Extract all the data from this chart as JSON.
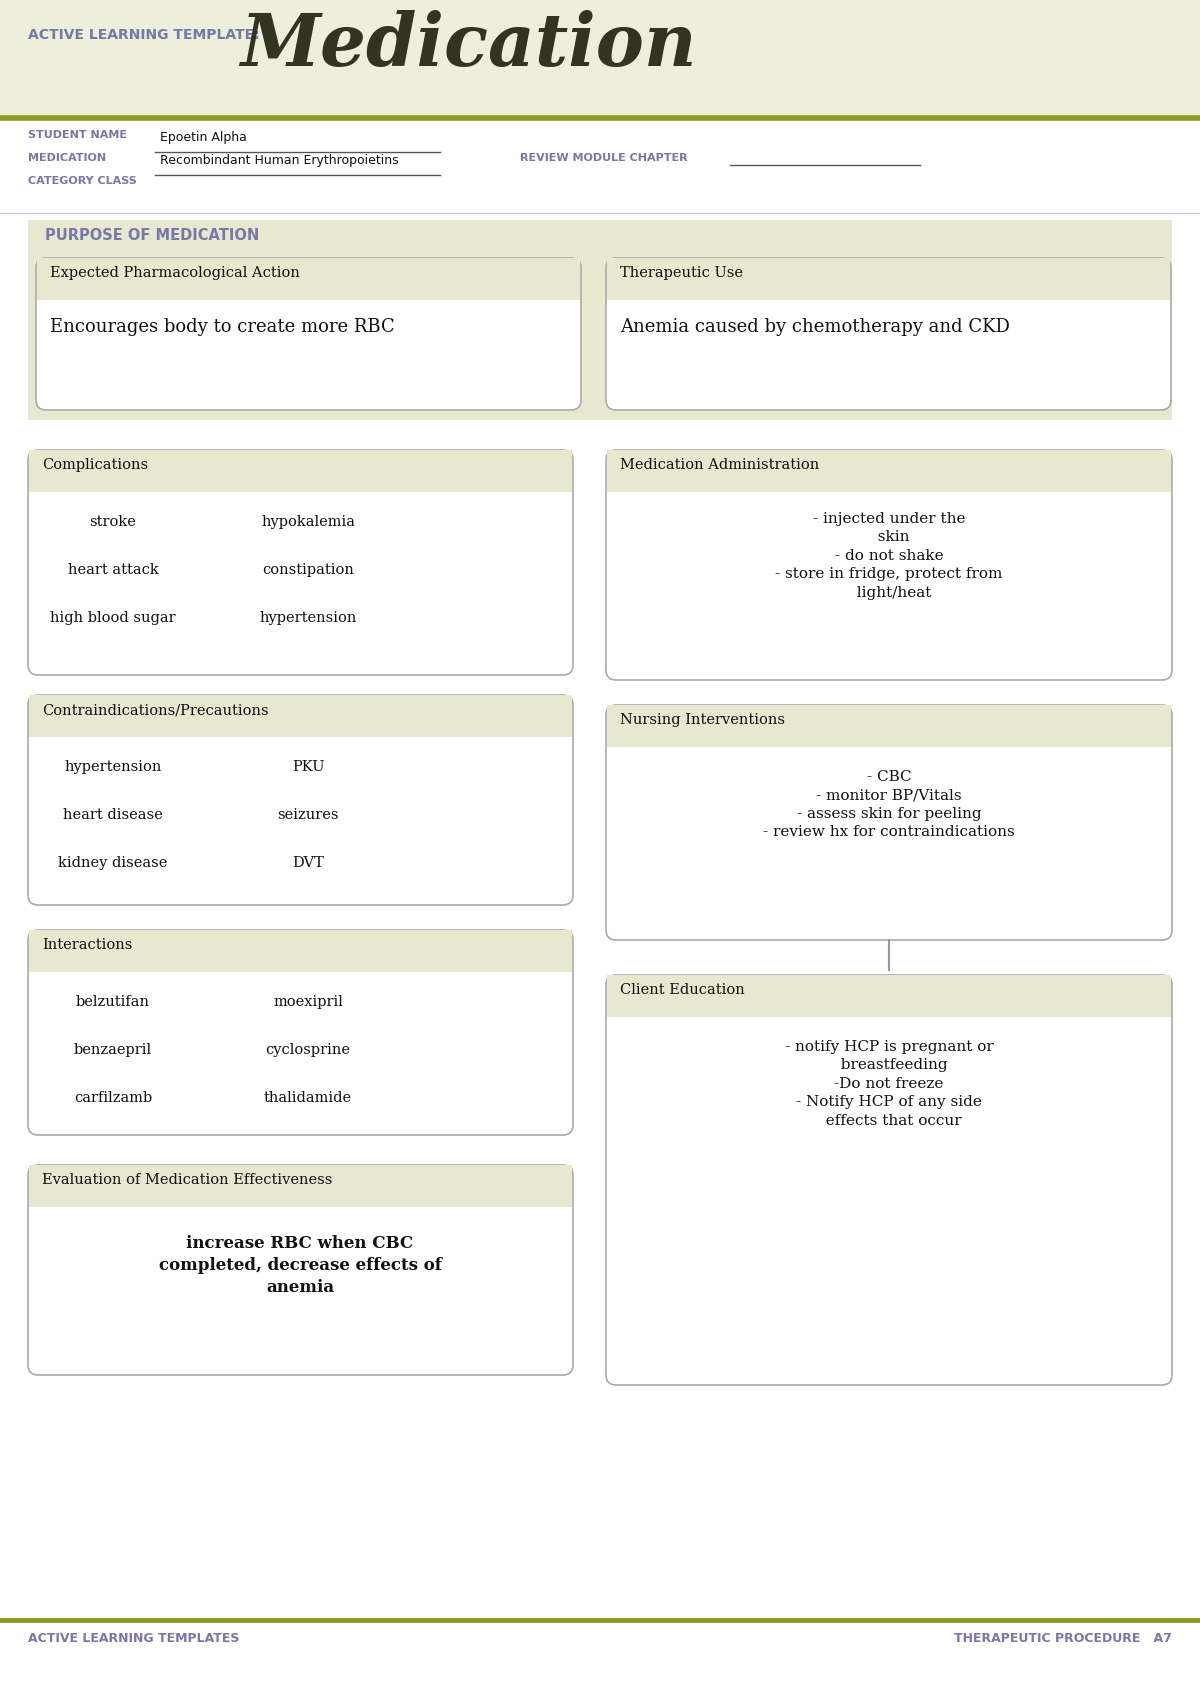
{
  "bg_color": "#eeeedd",
  "white": "#ffffff",
  "section_bg": "#e8e8d0",
  "border_color": "#aaaaaa",
  "title_color": "#6666aa",
  "text_color": "#111111",
  "olive_line": "#8a9a20",
  "gray_bg": "#e0e0d0",
  "header_text": "ACTIVE LEARNING TEMPLATE:",
  "title_text": "Medication",
  "student_name_label": "STUDENT NAME",
  "medication_label": "MEDICATION",
  "category_label": "CATEGORY CLASS",
  "student_name_val": "Epoetin Alpha",
  "medication_val": "Recombindant Human Erythropoietins",
  "review_label": "REVIEW MODULE CHAPTER",
  "purpose_label": "PURPOSE OF MEDICATION",
  "box1_header": "Expected Pharmacological Action",
  "box1_content": "Encourages body to create more RBC",
  "box2_header": "Therapeutic Use",
  "box2_content": "Anemia caused by chemotherapy and CKD",
  "comp_header": "Complications",
  "comp_col1": [
    "stroke",
    "heart attack",
    "high blood sugar"
  ],
  "comp_col2": [
    "hypokalemia",
    "constipation",
    "hypertension"
  ],
  "med_admin_header": "Medication Administration",
  "med_admin_lines": [
    "- injected under the",
    "  skin",
    "- do not shake",
    "- store in fridge, protect from",
    "  light/heat"
  ],
  "contra_header": "Contraindications/Precautions",
  "contra_col1": [
    "hypertension",
    "heart disease",
    "kidney disease"
  ],
  "contra_col2": [
    "PKU",
    "seizures",
    "DVT"
  ],
  "nursing_header": "Nursing Interventions",
  "nursing_lines": [
    "- CBC",
    "- monitor BP/Vitals",
    "- assess skin for peeling",
    "- review hx for contraindications"
  ],
  "interact_header": "Interactions",
  "interact_col1": [
    "belzutifan",
    "benzaepril",
    "carfilzamb"
  ],
  "interact_col2": [
    "moexipril",
    "cyclosprine",
    "thalidamide"
  ],
  "client_header": "Client Education",
  "client_lines": [
    "- notify HCP is pregnant or",
    "  breastfeeding",
    "-Do not freeze",
    "- Notify HCP of any side",
    "  effects that occur"
  ],
  "eval_header": "Evaluation of Medication Effectiveness",
  "eval_lines": [
    "increase RBC when CBC",
    "completed, decrease effects of",
    "anemia"
  ],
  "footer_left": "ACTIVE LEARNING TEMPLATES",
  "footer_right": "THERAPEUTIC PROCEDURE   A7"
}
